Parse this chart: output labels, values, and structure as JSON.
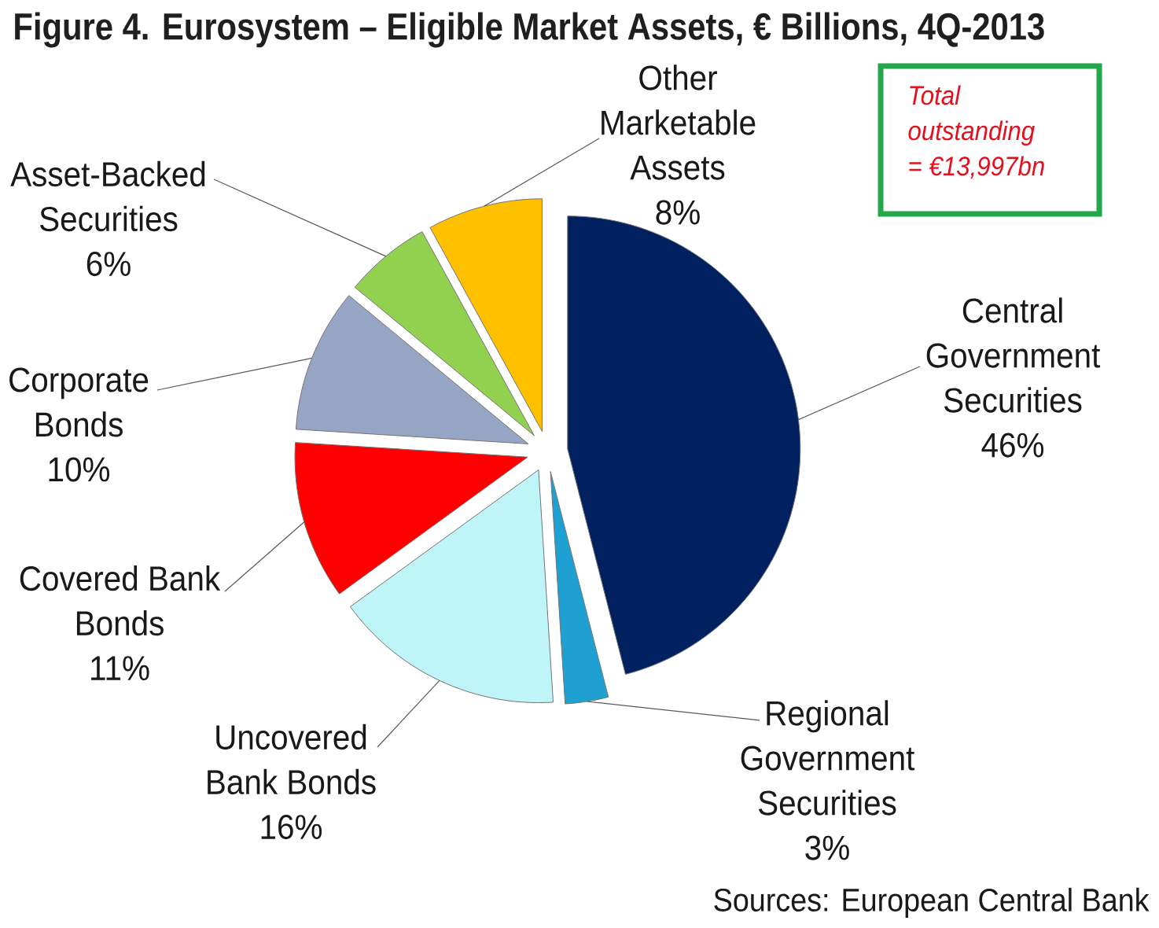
{
  "chart_data": {
    "type": "pie",
    "title": "Figure 4. Eurosystem – Eligible Market Assets, € Billions, 4Q-2013",
    "categories": [
      "Central Government Securities",
      "Regional Government Securities",
      "Uncovered Bank Bonds",
      "Covered Bank Bonds",
      "Corporate Bonds",
      "Asset-Backed Securities",
      "Other Marketable Assets"
    ],
    "values": [
      46,
      3,
      16,
      11,
      10,
      6,
      8
    ],
    "value_labels": [
      "46%",
      "3%",
      "16%",
      "11%",
      "10%",
      "6%",
      "8%"
    ],
    "colors": [
      "#002060",
      "#1fa0d2",
      "#bff5f9",
      "#ff0000",
      "#97a5c5",
      "#92d050",
      "#ffc000"
    ],
    "annotations": [
      "Total outstanding = €13,997bn",
      "Sources: European Central Bank"
    ]
  }
}
